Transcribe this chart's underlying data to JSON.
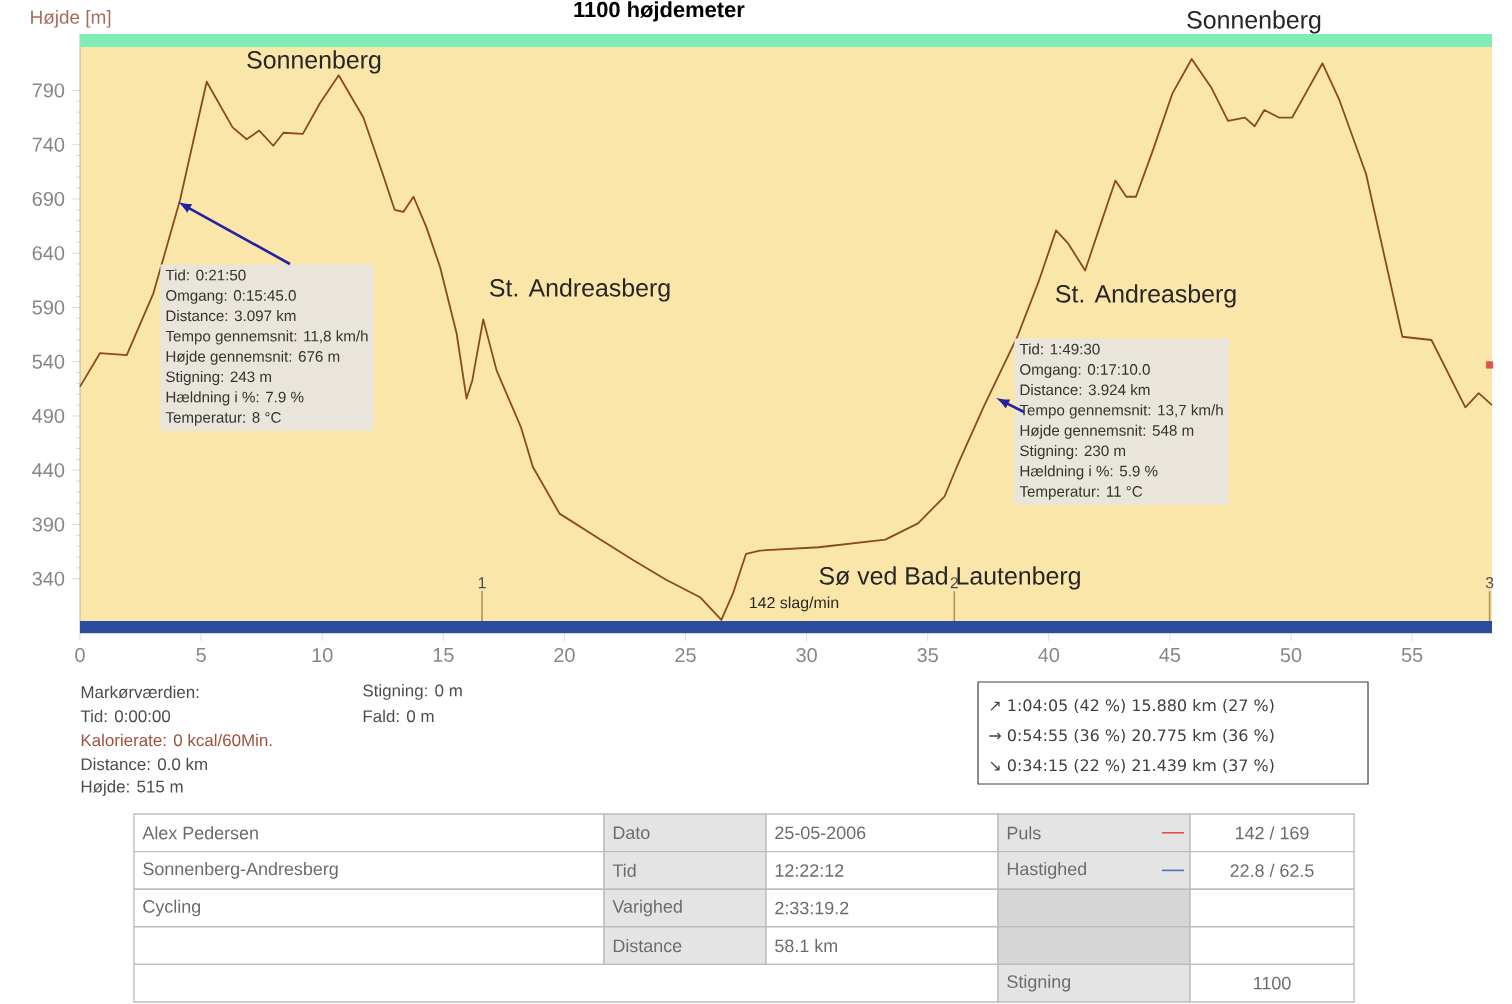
{
  "chart_data": {
    "type": "line",
    "title": "1100 højdemeter",
    "ylabel": "Højde [m]",
    "xlim": [
      0,
      58.3
    ],
    "ylim": [
      290,
      842
    ],
    "xticks": [
      0,
      5,
      10,
      15,
      20,
      25,
      30,
      35,
      40,
      45,
      50,
      55
    ],
    "yticks": [
      340,
      390,
      440,
      490,
      540,
      590,
      640,
      690,
      740,
      790
    ],
    "series": [
      {
        "color": "#8b4a1e",
        "x": [
          0,
          0.83,
          1.93,
          3.03,
          4.13,
          5.23,
          6.3,
          6.88,
          7.4,
          7.98,
          8.4,
          9.2,
          9.9,
          10.68,
          11.7,
          12.5,
          12.99,
          13.35,
          13.77,
          14.3,
          14.87,
          15.55,
          15.96,
          16.2,
          16.65,
          17.2,
          18.2,
          18.7,
          19.8,
          21.5,
          22.85,
          24.2,
          25.6,
          26.48,
          26.97,
          27.5,
          28.07,
          30.5,
          33.25,
          34.6,
          35.7,
          36.2,
          37.3,
          38.7,
          39.6,
          40.3,
          40.8,
          41.5,
          42.1,
          42.75,
          43.2,
          43.6,
          44.3,
          45.1,
          45.9,
          46.7,
          47.4,
          48.1,
          48.5,
          48.9,
          49.5,
          50.05,
          50.6,
          51.3,
          52.0,
          53.1,
          54.6,
          55.8,
          57.2,
          57.75,
          58.3
        ],
        "values": [
          517,
          548,
          546,
          603,
          689,
          798,
          756,
          745,
          753,
          739,
          751,
          750,
          778,
          804,
          765,
          713,
          680,
          678,
          692,
          664,
          627,
          566,
          506,
          523,
          579,
          532,
          480,
          443,
          400,
          376,
          357,
          339,
          323,
          302,
          327,
          363,
          366,
          369,
          376,
          391,
          416,
          443,
          498,
          563,
          615,
          661,
          649,
          624,
          664,
          707,
          692,
          692,
          735,
          787,
          819,
          793,
          762,
          765,
          757,
          772,
          765,
          765,
          787,
          815,
          781,
          713,
          563,
          560,
          498,
          511,
          500
        ]
      },
      {
        "type": "scatter",
        "marker": "square",
        "color": "#d9534f",
        "x": [
          58.2
        ],
        "values": [
          537
        ]
      }
    ],
    "bands": [
      {
        "axis": "y",
        "from": 830,
        "to": 842,
        "color": "#80eeb4"
      },
      {
        "axis": "y",
        "from": 290,
        "to": 301,
        "color": "#2b4c9b"
      }
    ],
    "annotations": [
      "Sonnenberg",
      "Sonnenberg",
      "St. Andreasberg",
      "St. Andreasberg",
      "Sø ved Bad Lautenberg",
      "142 slag/min",
      "Tid: 0:21:50",
      "Omgang: 0:15:45.0",
      "Distance:  3.097 km",
      "Tempo gennemsnit: 11,8 km/h",
      "Højde gennemsnit:  676 m",
      "Stigning:  243 m",
      "Hældning i %: 7.9 %",
      "Temperatur: 8 °C",
      "Tid: 1:49:30",
      "Omgang: 0:17:10.0",
      "Distance:  3.924 km",
      "Tempo gennemsnit: 13,7 km/h",
      "Højde gennemsnit:  548 m",
      "Stigning:  230 m",
      "Hældning i %: 5.9 %",
      "Temperatur: 11 °C",
      {
        "text": "1",
        "x": 16.6,
        "y": 301
      },
      {
        "text": "2",
        "x": 36.1,
        "y": 301
      },
      {
        "text": "3",
        "x": 58.2,
        "y": 301
      },
      "Markørværdien:",
      "Tid: 0:00:00",
      "Kalorierate: 0 kcal/60Min.",
      "Distance: 0.0 km",
      "Højde: 515 m",
      "Stigning: 0 m",
      "Fald: 0 m",
      "↗ 1:04:05  (42 %) 15.880 km  (27 %)",
      "→ 0:54:55  (36 %) 20.775 km  (36 %)",
      "↘ 0:34:15  (22 %) 21.439 km  (37 %)",
      "Alex Pedersen",
      "Dato",
      "25-05-2006",
      "Puls",
      "142 / 169",
      "Sonnenberg-Andresberg",
      "Tid",
      "12:22:12",
      "Hastighed",
      "22.8 / 62.5",
      "Cycling",
      "Varighed",
      "2:33:19.2",
      "Distance",
      "58.1 km",
      "Stigning",
      "1100"
    ]
  }
}
